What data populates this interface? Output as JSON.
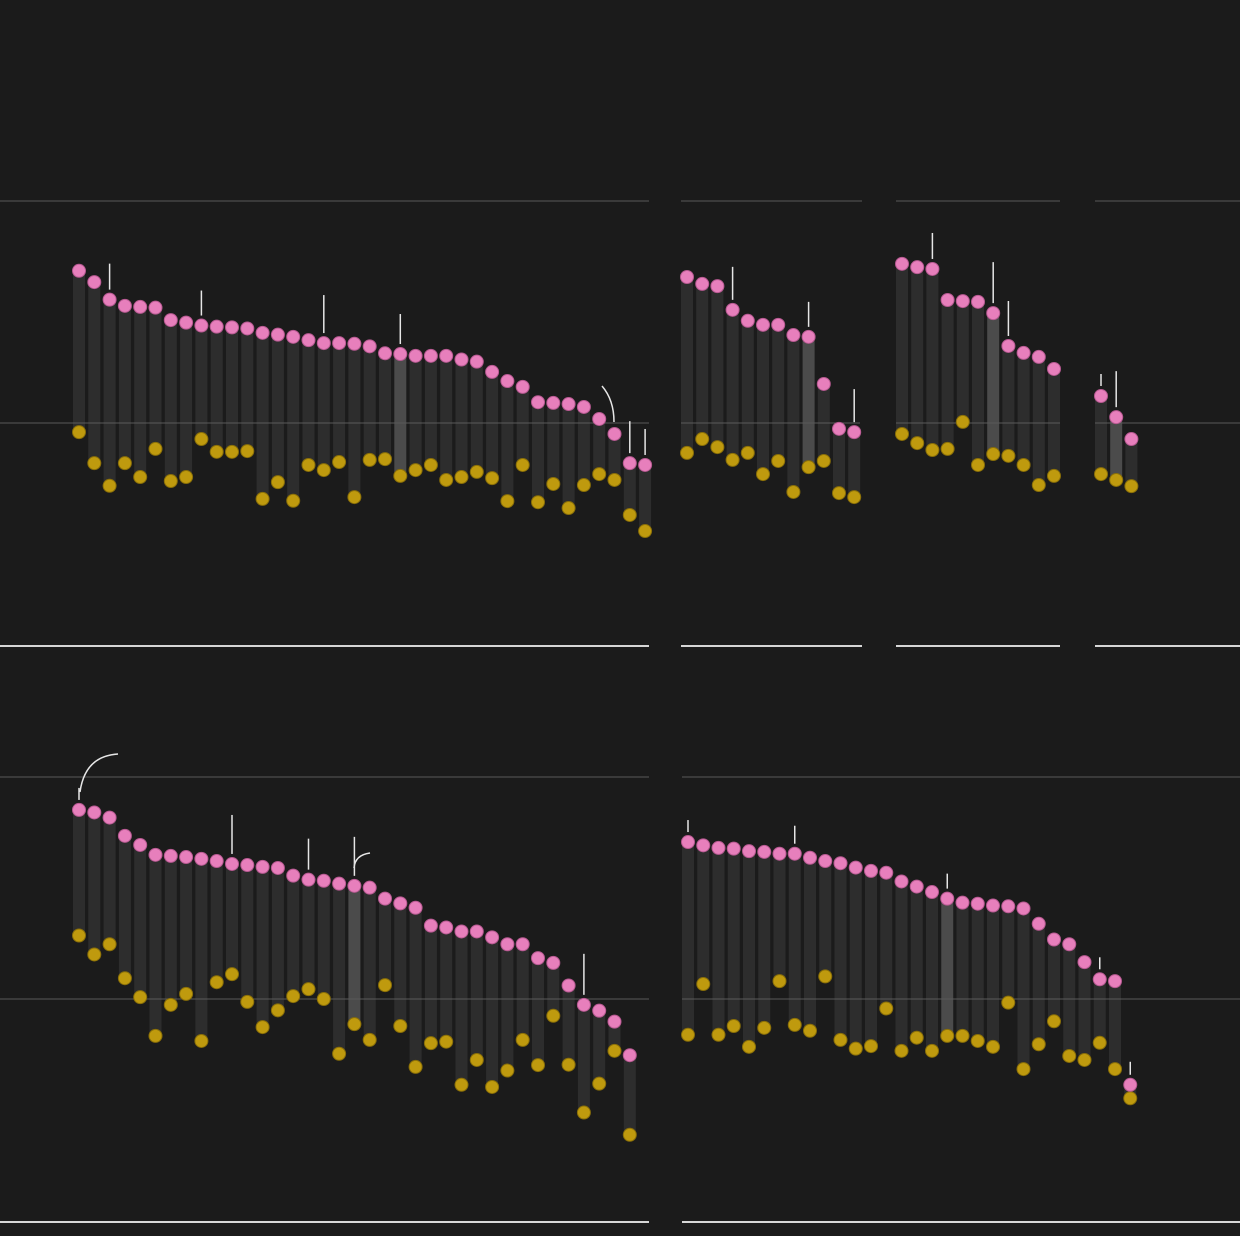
{
  "colors": {
    "background": "#1b1b1b",
    "pink_dot": "#e77fbc",
    "gold_dot": "#bf9a0e",
    "bar": "#2d2d2d",
    "highlight_bar": "#4b4b4b",
    "baseline": "#5a5a5a",
    "axis_bottom": "#d6d6d6",
    "annotation": "#e6e6e6"
  },
  "chart_data": [
    {
      "type": "dot-range",
      "panel": "top-1",
      "title": "",
      "xlabel": "",
      "ylabel": "",
      "baseline": 0,
      "ylim": [
        -0.6,
        0.6
      ],
      "highlight_index": 21,
      "annotations_at": [
        2,
        8,
        16,
        21,
        36,
        37
      ],
      "top": [
        0.417,
        0.386,
        0.338,
        0.321,
        0.318,
        0.316,
        0.282,
        0.275,
        0.267,
        0.264,
        0.262,
        0.259,
        0.247,
        0.242,
        0.236,
        0.227,
        0.219,
        0.219,
        0.217,
        0.21,
        0.191,
        0.189,
        0.184,
        0.184,
        0.184,
        0.174,
        0.168,
        0.14,
        0.115,
        0.099,
        0.057,
        0.055,
        0.052,
        0.044,
        0.011,
        -0.03,
        -0.11,
        -0.115
      ],
      "bottom": [
        -0.025,
        -0.11,
        -0.172,
        -0.11,
        -0.148,
        -0.071,
        -0.159,
        -0.148,
        -0.044,
        -0.079,
        -0.079,
        -0.077,
        -0.208,
        -0.162,
        -0.213,
        -0.115,
        -0.129,
        -0.107,
        -0.203,
        -0.101,
        -0.099,
        -0.145,
        -0.129,
        -0.115,
        -0.156,
        -0.148,
        -0.134,
        -0.151,
        -0.214,
        -0.115,
        -0.217,
        -0.167,
        -0.233,
        -0.17,
        -0.14,
        -0.156,
        -0.252,
        -0.296
      ]
    },
    {
      "type": "dot-range",
      "panel": "top-2",
      "title": "",
      "xlabel": "",
      "ylabel": "",
      "baseline": 0,
      "ylim": [
        -0.6,
        0.6
      ],
      "highlight_index": 8,
      "annotations_at": [
        3,
        8,
        11
      ],
      "top": [
        0.4,
        0.381,
        0.375,
        0.31,
        0.28,
        0.269,
        0.269,
        0.241,
        0.236,
        0.107,
        -0.016,
        -0.025
      ],
      "bottom": [
        -0.082,
        -0.044,
        -0.066,
        -0.101,
        -0.082,
        -0.14,
        -0.104,
        -0.189,
        -0.121,
        -0.104,
        -0.192,
        -0.203
      ]
    },
    {
      "type": "dot-range",
      "panel": "top-3",
      "title": "",
      "xlabel": "",
      "ylabel": "",
      "baseline": 0,
      "ylim": [
        -0.6,
        0.6
      ],
      "highlight_index": 6,
      "annotations_at": [
        2,
        6,
        7
      ],
      "top": [
        0.436,
        0.427,
        0.422,
        0.337,
        0.334,
        0.332,
        0.301,
        0.211,
        0.192,
        0.181,
        0.148
      ],
      "bottom": [
        -0.03,
        -0.055,
        -0.074,
        -0.071,
        0.003,
        -0.115,
        -0.085,
        -0.09,
        -0.115,
        -0.17,
        -0.145
      ]
    },
    {
      "type": "dot-range",
      "panel": "top-4",
      "title": "",
      "xlabel": "",
      "ylabel": "",
      "baseline": 0,
      "ylim": [
        -0.6,
        0.6
      ],
      "highlight_index": 1,
      "annotations_at": [
        0,
        1
      ],
      "top": [
        0.074,
        0.016,
        -0.044
      ],
      "bottom": [
        -0.14,
        -0.156,
        -0.173
      ]
    },
    {
      "type": "dot-range",
      "panel": "bottom-1",
      "title": "",
      "xlabel": "",
      "ylabel": "",
      "baseline": 0,
      "ylim": [
        -0.6,
        0.6
      ],
      "highlight_index": 18,
      "annotations_at": [
        0,
        10,
        15,
        18,
        33
      ],
      "top": [
        0.518,
        0.511,
        0.497,
        0.447,
        0.422,
        0.395,
        0.392,
        0.389,
        0.384,
        0.378,
        0.37,
        0.367,
        0.362,
        0.359,
        0.338,
        0.327,
        0.324,
        0.316,
        0.31,
        0.305,
        0.275,
        0.262,
        0.25,
        0.201,
        0.196,
        0.185,
        0.185,
        0.169,
        0.15,
        0.15,
        0.112,
        0.099,
        0.037,
        -0.016,
        -0.032,
        -0.062,
        -0.154
      ],
      "bottom": [
        0.174,
        0.122,
        0.15,
        0.057,
        0.005,
        -0.101,
        -0.016,
        0.014,
        -0.115,
        0.046,
        0.068,
        -0.008,
        -0.077,
        -0.031,
        0.008,
        0.027,
        0.0,
        -0.15,
        -0.069,
        -0.112,
        0.038,
        -0.074,
        -0.186,
        -0.121,
        -0.117,
        -0.235,
        -0.167,
        -0.241,
        -0.196,
        -0.112,
        -0.181,
        -0.046,
        -0.18,
        -0.311,
        -0.232,
        -0.142,
        -0.372
      ]
    },
    {
      "type": "dot-range",
      "panel": "bottom-2",
      "title": "",
      "xlabel": "",
      "ylabel": "",
      "baseline": 0,
      "ylim": [
        -0.6,
        0.6
      ],
      "highlight_index": 17,
      "annotations_at": [
        0,
        7,
        17,
        27,
        29
      ],
      "top": [
        0.43,
        0.421,
        0.414,
        0.412,
        0.405,
        0.403,
        0.398,
        0.398,
        0.387,
        0.378,
        0.372,
        0.36,
        0.351,
        0.346,
        0.322,
        0.308,
        0.293,
        0.275,
        0.264,
        0.261,
        0.256,
        0.254,
        0.248,
        0.206,
        0.163,
        0.15,
        0.101,
        0.054,
        0.049,
        -0.235
      ],
      "bottom": [
        -0.098,
        0.041,
        -0.098,
        -0.074,
        -0.131,
        -0.079,
        0.049,
        -0.071,
        -0.087,
        0.062,
        -0.112,
        -0.136,
        -0.129,
        -0.026,
        -0.142,
        -0.106,
        -0.142,
        -0.101,
        -0.101,
        -0.115,
        -0.131,
        -0.01,
        -0.192,
        -0.124,
        -0.061,
        -0.156,
        -0.167,
        -0.12,
        -0.192,
        -0.272
      ]
    }
  ]
}
